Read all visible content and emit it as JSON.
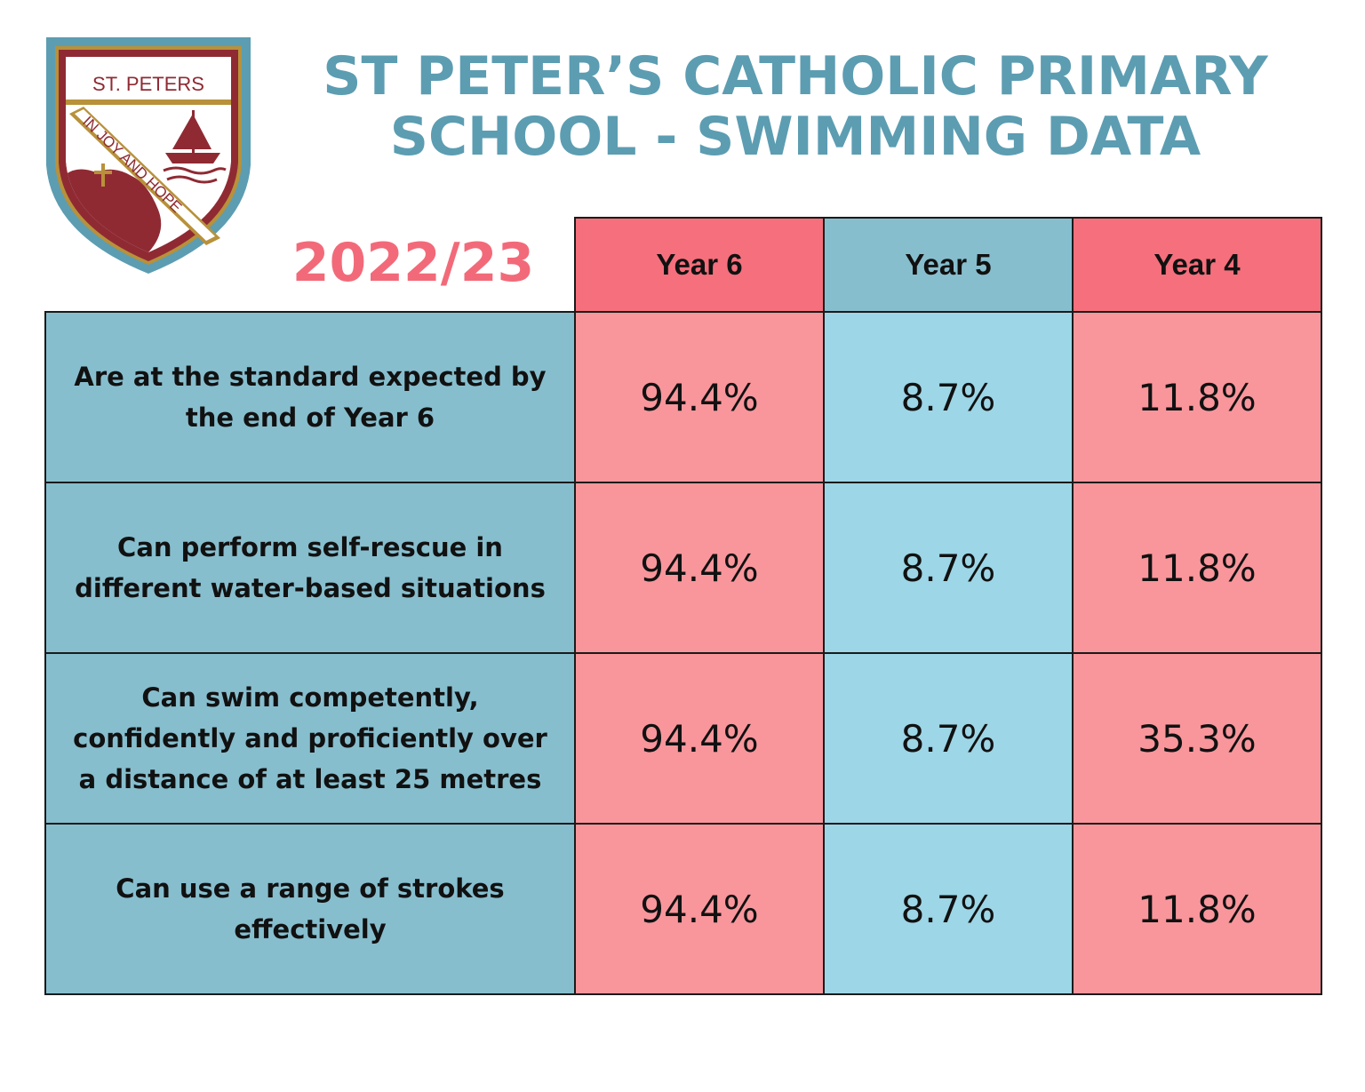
{
  "crest": {
    "top_text": "ST. PETERS",
    "motto": "IN JOY AND HOPE",
    "colors": {
      "border": "#5c9db2",
      "inner_border": "#b8913a",
      "maroon": "#8f2a33",
      "ground": "#ffffff"
    }
  },
  "title": {
    "line1": "ST PETER’S CATHOLIC PRIMARY",
    "line2": "SCHOOL - SWIMMING DATA"
  },
  "academic_year": "2022/23",
  "table": {
    "columns": [
      "Year 6",
      "Year 5",
      "Year 4"
    ],
    "rows": [
      {
        "label": "Are at the standard expected by the end of Year 6",
        "values": [
          "94.4%",
          "8.7%",
          "11.8%"
        ]
      },
      {
        "label": "Can perform self-rescue in different water-based situations",
        "values": [
          "94.4%",
          "8.7%",
          "11.8%"
        ]
      },
      {
        "label": "Can swim competently, confidently and proficiently over a distance of at least 25 metres",
        "values": [
          "94.4%",
          "8.7%",
          "35.3%"
        ]
      },
      {
        "label": "Can use a range of strokes effectively",
        "values": [
          "94.4%",
          "8.7%",
          "11.8%"
        ]
      }
    ]
  },
  "colors": {
    "title": "#5c9db2",
    "year_label": "#f26a79",
    "header_pink": "#f56f7c",
    "header_blue": "#87bece",
    "cell_pink": "#f8969c",
    "cell_blue": "#9dd6e6",
    "label_blue": "#87bece"
  }
}
